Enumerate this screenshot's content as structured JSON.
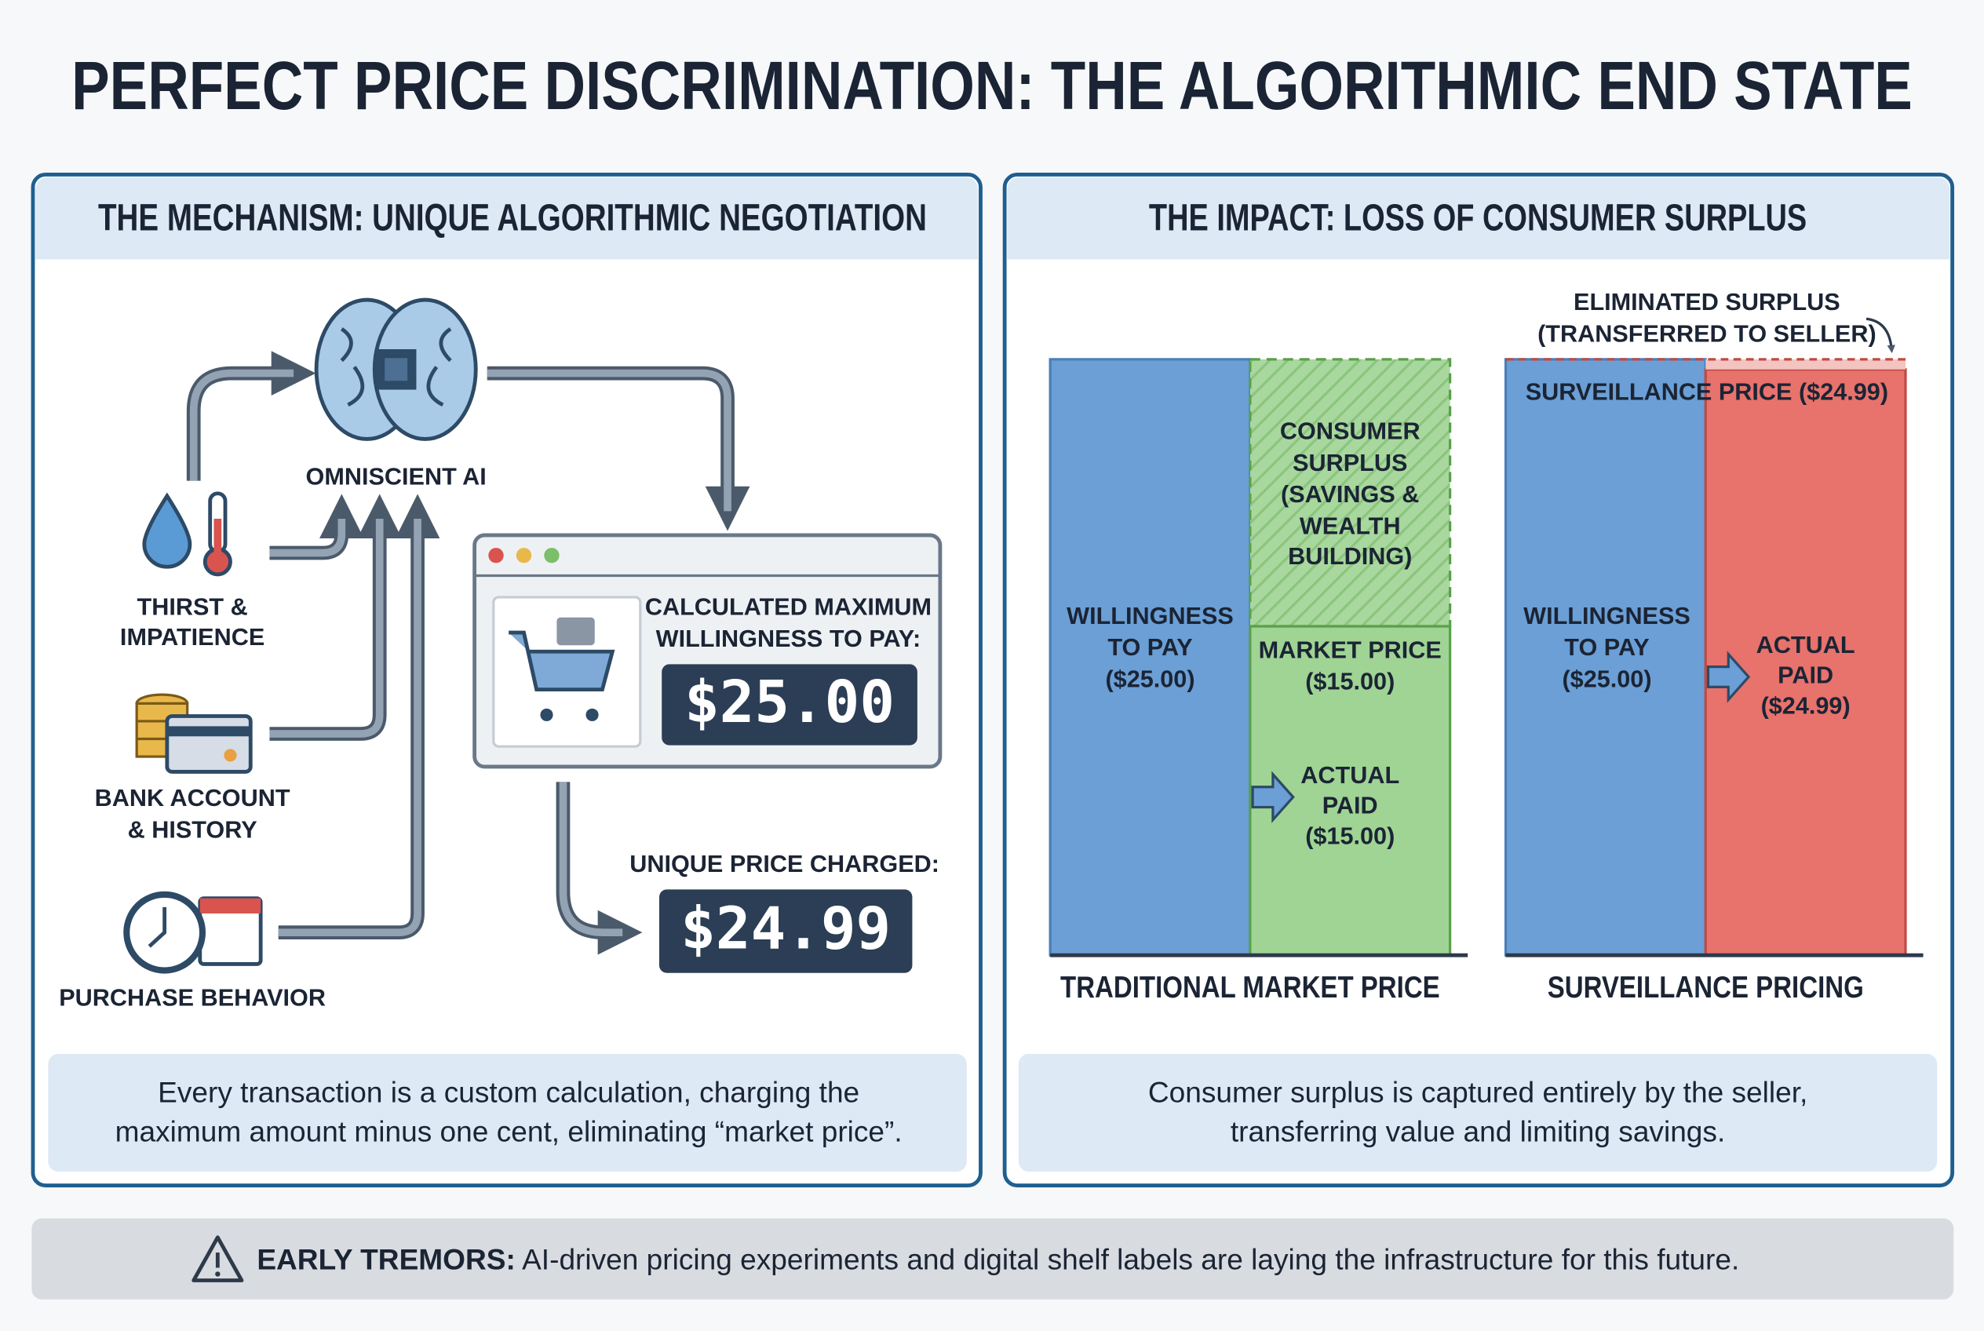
{
  "title": "PERFECT PRICE DISCRIMINATION: THE ALGORITHMIC END STATE",
  "mechanism": {
    "heading": "THE MECHANISM: UNIQUE ALGORITHMIC NEGOTIATION",
    "ai_label": "OMNISCIENT AI",
    "inputs": [
      [
        "THIRST &",
        "IMPATIENCE"
      ],
      [
        "BANK ACCOUNT",
        "& HISTORY"
      ],
      [
        "PURCHASE BEHAVIOR"
      ]
    ],
    "calc_label": [
      "CALCULATED MAXIMUM",
      "WILLINGNESS TO PAY:"
    ],
    "calc_value": "$25.00",
    "charged_label": "UNIQUE PRICE CHARGED:",
    "charged_value": "$24.99",
    "caption": [
      "Every transaction is a custom calculation, charging the",
      "maximum amount minus one cent, eliminating “market price”."
    ]
  },
  "impact": {
    "heading": "THE IMPACT: LOSS OF CONSUMER SURPLUS",
    "eliminated": [
      "ELIMINATED SURPLUS",
      "(TRANSFERRED TO SELLER)"
    ],
    "traditional": {
      "willingness": [
        "WILLINGNESS",
        "TO PAY",
        "($25.00)"
      ],
      "surplus": [
        "CONSUMER",
        "SURPLUS",
        "(SAVINGS &",
        "WEALTH",
        "BUILDING)"
      ],
      "market": [
        "MARKET PRICE",
        "($15.00)"
      ],
      "paid": [
        "ACTUAL",
        "PAID",
        "($15.00)"
      ],
      "label": "TRADITIONAL MARKET PRICE"
    },
    "surveillance": {
      "price": "SURVEILLANCE PRICE ($24.99)",
      "willingness": [
        "WILLINGNESS",
        "TO PAY",
        "($25.00)"
      ],
      "paid": [
        "ACTUAL",
        "PAID",
        "($24.99)"
      ],
      "label": "SURVEILLANCE PRICING"
    },
    "caption": [
      "Consumer surplus is captured entirely by the seller,",
      "transferring value and limiting savings."
    ]
  },
  "footer": {
    "lead": "EARLY TREMORS:",
    "text": " AI-driven pricing experiments and digital shelf labels are laying the infrastructure for this future."
  }
}
